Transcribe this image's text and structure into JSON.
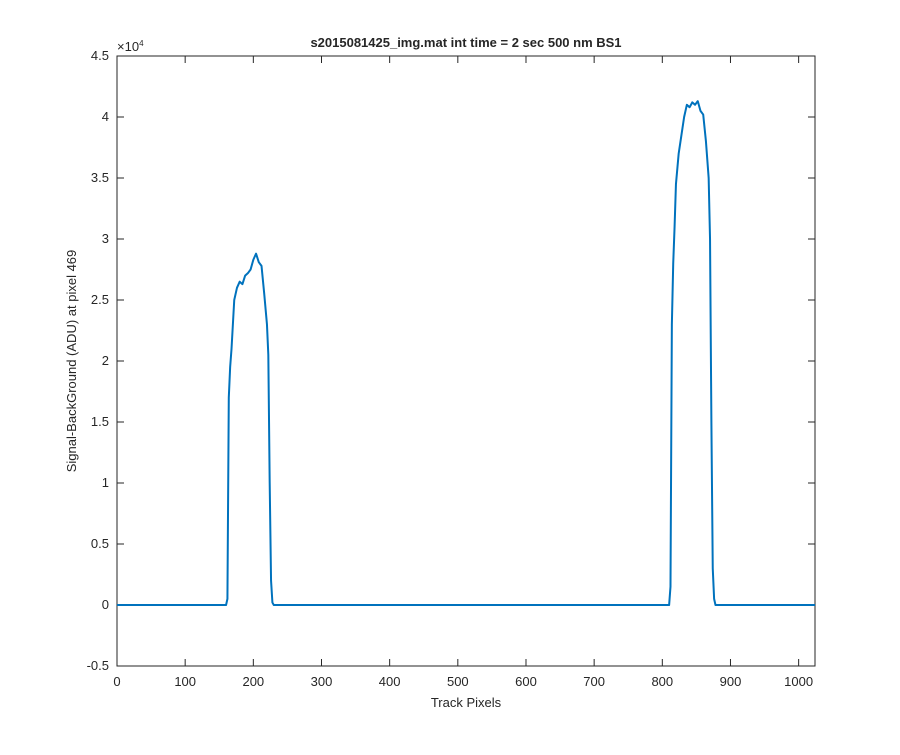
{
  "chart_data": {
    "type": "line",
    "title": "s2015081425_img.mat int time = 2 sec  500 nm BS1",
    "xlabel": "Track Pixels",
    "ylabel": "Signal-BackGround (ADU) at pixel 469",
    "xlim": [
      0,
      1024
    ],
    "ylim": [
      -5000,
      45000
    ],
    "xticks": [
      0,
      100,
      200,
      300,
      400,
      500,
      600,
      700,
      800,
      900,
      1000
    ],
    "yticks": [
      -5000,
      0,
      5000,
      10000,
      15000,
      20000,
      25000,
      30000,
      35000,
      40000,
      45000
    ],
    "ytick_labels": [
      "-0.5",
      "0",
      "0.5",
      "1",
      "1.5",
      "2",
      "2.5",
      "3",
      "3.5",
      "4",
      "4.5"
    ],
    "y_exponent_base": "×10",
    "y_exponent_power": "4",
    "grid": false,
    "line_color": "#0072bd",
    "series": [
      {
        "x": [
          0,
          50,
          100,
          150,
          160,
          162,
          164,
          166,
          168,
          172,
          176,
          180,
          184,
          188,
          192,
          196,
          200,
          204,
          208,
          212,
          216,
          220,
          222,
          224,
          226,
          228,
          230,
          240,
          300,
          400,
          500,
          600,
          700,
          780,
          810,
          812,
          814,
          816,
          818,
          820,
          824,
          828,
          832,
          836,
          840,
          844,
          848,
          852,
          856,
          860,
          864,
          868,
          870,
          872,
          874,
          876,
          878,
          880,
          900,
          1000,
          1024
        ],
        "y": [
          0,
          0,
          0,
          0,
          0,
          500,
          17000,
          19500,
          21000,
          25000,
          26000,
          26500,
          26300,
          27000,
          27200,
          27500,
          28300,
          28800,
          28100,
          27800,
          25500,
          23000,
          20500,
          10000,
          2000,
          200,
          0,
          0,
          0,
          0,
          0,
          0,
          0,
          0,
          0,
          1500,
          23000,
          28000,
          31000,
          34500,
          37000,
          38500,
          40000,
          41000,
          40800,
          41200,
          41000,
          41300,
          40500,
          40200,
          38000,
          35000,
          30000,
          15000,
          3000,
          500,
          0,
          0,
          0,
          0,
          0
        ]
      }
    ]
  }
}
